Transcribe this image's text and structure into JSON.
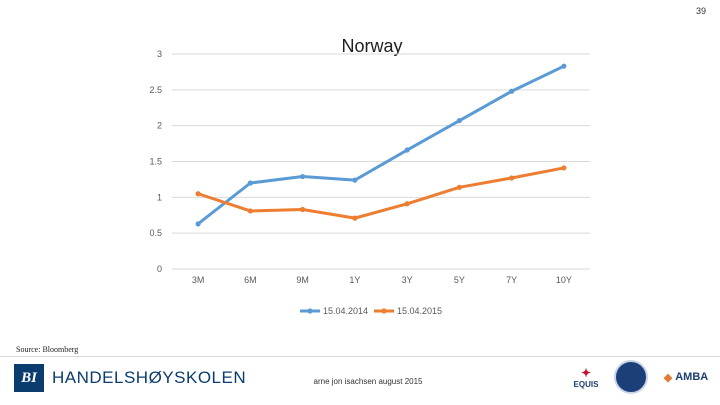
{
  "page_number": "39",
  "source": "Source: Bloomberg",
  "footer": {
    "logo_mark": "BI",
    "logo_name": "HANDELSHØYSKOLEN",
    "center_text": "arne jon isachsen august 2015",
    "equis_label": "EQUIS",
    "amba_label": "AMBA"
  },
  "colors": {
    "series_2014": "#5b9bd5",
    "series_2015": "#ed7d31",
    "grid": "#d9d9d9"
  },
  "chart_data": {
    "type": "line",
    "title": "Norway",
    "xlabel": "",
    "ylabel": "",
    "categories": [
      "3M",
      "6M",
      "9M",
      "1Y",
      "3Y",
      "5Y",
      "7Y",
      "10Y"
    ],
    "ylim": [
      0,
      3
    ],
    "yticks": [
      "0",
      "0.5",
      "1",
      "1.5",
      "2",
      "2.5",
      "3"
    ],
    "grid": true,
    "legend_position": "bottom",
    "series": [
      {
        "name": "15.04.2014",
        "values": [
          0.63,
          1.2,
          1.29,
          1.24,
          1.66,
          2.07,
          2.48,
          2.83
        ]
      },
      {
        "name": "15.04.2015",
        "values": [
          1.05,
          0.81,
          0.83,
          0.71,
          0.91,
          1.14,
          1.27,
          1.41
        ]
      }
    ]
  }
}
